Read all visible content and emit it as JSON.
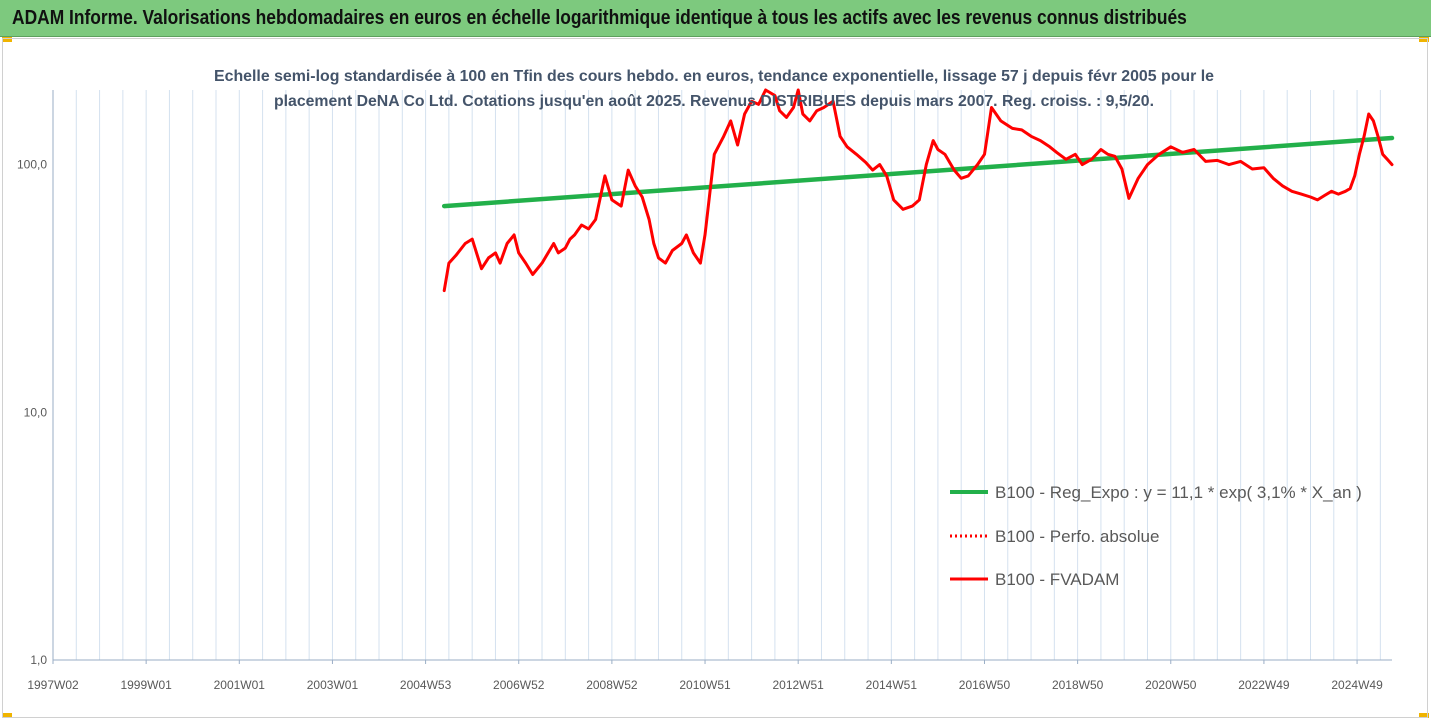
{
  "header": {
    "banner": "ADAM Informe. Valorisations hebdomadaires en euros en échelle logarithmique identique à tous les actifs avec les revenus connus distribués"
  },
  "colors": {
    "banner_bg": "#7dc97e",
    "series_perf": "#ff0000",
    "series_fvadam": "#ff0000",
    "series_reg": "#22b04a",
    "corner_marks": "#f0b400"
  },
  "chart_data": {
    "type": "line",
    "title_lines": [
      "Echelle semi-log standardisée à 100 en Tfin des cours hebdo. en euros, tendance exponentielle, lissage 57 j depuis févr 2005 pour le",
      "placement DeNA Co Ltd. Cotations jusqu'en août 2025. Revenus DISTRIBUES depuis mars 2007. Reg. croiss. : 9,5/20."
    ],
    "y_scale": "log",
    "ylim": [
      1,
      200
    ],
    "y_ticks": [
      {
        "value": 1,
        "label": "1,0"
      },
      {
        "value": 10,
        "label": "10,0"
      },
      {
        "value": 100,
        "label": "100,0"
      }
    ],
    "xlim": [
      1997.0,
      2025.75
    ],
    "x_ticks": [
      {
        "value": 1997.0,
        "label": "1997W02"
      },
      {
        "value": 1999.0,
        "label": "1999W01"
      },
      {
        "value": 2001.0,
        "label": "2001W01"
      },
      {
        "value": 2003.0,
        "label": "2003W01"
      },
      {
        "value": 2005.0,
        "label": "2004W53"
      },
      {
        "value": 2007.0,
        "label": "2006W52"
      },
      {
        "value": 2009.0,
        "label": "2008W52"
      },
      {
        "value": 2011.0,
        "label": "2010W51"
      },
      {
        "value": 2013.0,
        "label": "2012W51"
      },
      {
        "value": 2015.0,
        "label": "2014W51"
      },
      {
        "value": 2017.0,
        "label": "2016W50"
      },
      {
        "value": 2019.0,
        "label": "2018W50"
      },
      {
        "value": 2021.0,
        "label": "2020W50"
      },
      {
        "value": 2023.0,
        "label": "2022W49"
      },
      {
        "value": 2025.0,
        "label": "2024W49"
      }
    ],
    "vertical_grid": true,
    "legend_placement": "bottom-right",
    "series": [
      {
        "name": "B100 - Reg_Expo : y = 11,1 * exp( 3,1% *  X_an )",
        "style": "solid-green",
        "x": [
          2005.4,
          2025.75
        ],
        "y": [
          68,
          128
        ]
      },
      {
        "name": "B100 - Perfo. absolue",
        "style": "dotted-red",
        "x": [],
        "y": []
      },
      {
        "name": "B100 - FVADAM",
        "style": "solid-red",
        "x": [
          2005.4,
          2005.5,
          2005.65,
          2005.85,
          2006.0,
          2006.2,
          2006.35,
          2006.5,
          2006.6,
          2006.75,
          2006.9,
          2007.0,
          2007.15,
          2007.3,
          2007.5,
          2007.75,
          2007.85,
          2008.0,
          2008.1,
          2008.2,
          2008.35,
          2008.5,
          2008.65,
          2008.85,
          2009.0,
          2009.2,
          2009.35,
          2009.5,
          2009.65,
          2009.8,
          2009.9,
          2010.0,
          2010.15,
          2010.3,
          2010.5,
          2010.6,
          2010.75,
          2010.9,
          2011.0,
          2011.2,
          2011.4,
          2011.55,
          2011.7,
          2011.85,
          2012.0,
          2012.15,
          2012.3,
          2012.5,
          2012.6,
          2012.75,
          2012.9,
          2013.0,
          2013.1,
          2013.25,
          2013.4,
          2013.55,
          2013.75,
          2013.9,
          2014.05,
          2014.25,
          2014.45,
          2014.6,
          2014.75,
          2014.9,
          2015.05,
          2015.25,
          2015.45,
          2015.6,
          2015.75,
          2015.9,
          2016.0,
          2016.15,
          2016.35,
          2016.5,
          2016.65,
          2016.85,
          2017.0,
          2017.15,
          2017.35,
          2017.6,
          2017.8,
          2018.0,
          2018.2,
          2018.4,
          2018.55,
          2018.75,
          2018.95,
          2019.1,
          2019.3,
          2019.5,
          2019.65,
          2019.8,
          2019.95,
          2020.1,
          2020.3,
          2020.5,
          2020.75,
          2021.0,
          2021.25,
          2021.5,
          2021.75,
          2022.0,
          2022.25,
          2022.5,
          2022.75,
          2023.0,
          2023.2,
          2023.4,
          2023.6,
          2023.8,
          2024.0,
          2024.15,
          2024.3,
          2024.45,
          2024.6,
          2024.75,
          2024.85,
          2024.95,
          2025.05,
          2025.15,
          2025.25,
          2025.35,
          2025.45,
          2025.55,
          2025.65,
          2025.75
        ],
        "y": [
          31,
          40,
          43,
          48,
          50,
          38,
          42,
          44,
          40,
          48,
          52,
          44,
          40,
          36,
          40,
          48,
          44,
          46,
          50,
          52,
          57,
          55,
          60,
          90,
          72,
          68,
          95,
          82,
          74,
          60,
          48,
          42,
          40,
          45,
          48,
          52,
          44,
          40,
          52,
          110,
          130,
          150,
          120,
          160,
          180,
          175,
          200,
          190,
          165,
          155,
          170,
          200,
          160,
          150,
          165,
          170,
          180,
          130,
          118,
          110,
          102,
          95,
          100,
          90,
          72,
          66,
          68,
          72,
          100,
          125,
          115,
          110,
          95,
          88,
          90,
          100,
          110,
          170,
          150,
          140,
          138,
          130,
          125,
          118,
          112,
          105,
          110,
          100,
          105,
          115,
          110,
          108,
          96,
          73,
          88,
          100,
          110,
          118,
          112,
          115,
          103,
          104,
          100,
          103,
          96,
          97,
          88,
          82,
          78,
          76,
          74,
          72,
          75,
          78,
          76,
          78,
          80,
          90,
          110,
          130,
          160,
          150,
          130,
          110,
          105,
          100
        ]
      }
    ]
  }
}
